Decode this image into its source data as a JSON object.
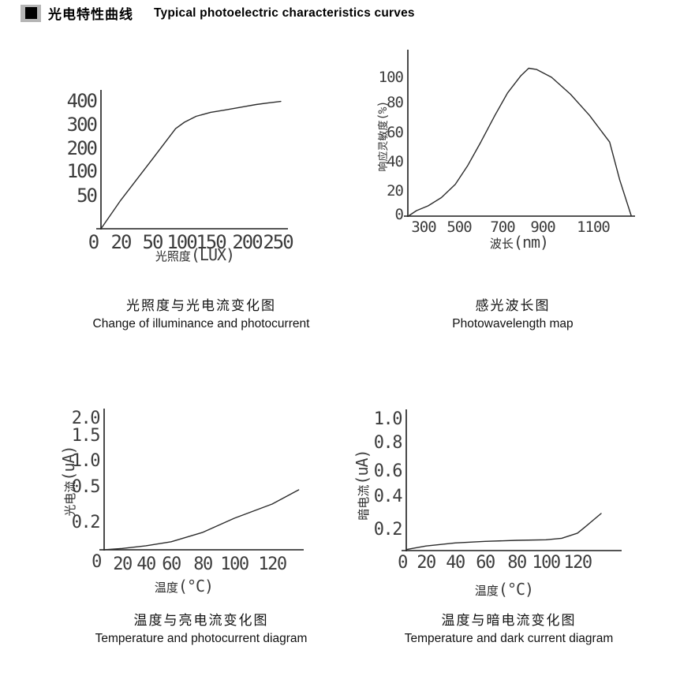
{
  "header": {
    "bullet_icon": "black-square",
    "title_zh": "光电特性曲线",
    "title_en": "Typical photoelectric characteristics curves"
  },
  "chart_data": [
    {
      "type": "line",
      "name": "illuminance-vs-photocurrent",
      "caption_zh": "光照度与光电流变化图",
      "caption_en": "Change of illuminance and photocurrent",
      "xlabel_zh": "光照度",
      "xlabel_unit": "(LUX)",
      "x_tick_labels": [
        "0",
        "20",
        "50",
        "100",
        "150",
        "200",
        "250"
      ],
      "y_tick_labels": [
        "400",
        "300",
        "200",
        "100",
        "50"
      ],
      "xlim": [
        0,
        270
      ],
      "ylim": [
        0,
        420
      ],
      "grid": false,
      "points": [
        [
          0,
          0
        ],
        [
          20,
          43
        ],
        [
          50,
          152
        ],
        [
          90,
          283
        ],
        [
          105,
          310
        ],
        [
          125,
          335
        ],
        [
          150,
          352
        ],
        [
          170,
          362
        ],
        [
          200,
          378
        ],
        [
          215,
          385
        ],
        [
          235,
          392
        ],
        [
          255,
          398
        ]
      ]
    },
    {
      "type": "line",
      "name": "spectral-response",
      "caption_zh": "感光波长图",
      "caption_en": "Photowavelength map",
      "xlabel_zh": "波长",
      "xlabel_unit": "(nm)",
      "ylabel_zh": "响应灵敏度",
      "ylabel_unit": "(%)",
      "x_tick_labels": [
        "300",
        "500",
        "700",
        "900",
        "1100"
      ],
      "y_tick_labels": [
        "100",
        "80",
        "60",
        "40",
        "20",
        "0"
      ],
      "xlim": [
        220,
        1250
      ],
      "ylim": [
        0,
        110
      ],
      "grid": false,
      "points": [
        [
          220,
          0
        ],
        [
          260,
          4
        ],
        [
          325,
          8
        ],
        [
          400,
          15
        ],
        [
          478,
          25
        ],
        [
          540,
          38
        ],
        [
          600,
          54
        ],
        [
          665,
          72
        ],
        [
          725,
          88
        ],
        [
          790,
          101
        ],
        [
          830,
          107
        ],
        [
          870,
          106
        ],
        [
          935,
          100
        ],
        [
          1010,
          87
        ],
        [
          1085,
          72
        ],
        [
          1165,
          54
        ],
        [
          1205,
          28
        ],
        [
          1250,
          0
        ]
      ]
    },
    {
      "type": "line",
      "name": "temperature-vs-photocurrent",
      "caption_zh": "温度与亮电流变化图",
      "caption_en": "Temperature and photocurrent diagram",
      "xlabel_zh": "温度",
      "xlabel_unit": "(°C)",
      "ylabel_zh": "光电流",
      "ylabel_unit": "(uA)",
      "x_tick_labels": [
        "0",
        "20",
        "40",
        "60",
        "80",
        "100",
        "120"
      ],
      "y_tick_labels": [
        "2.0",
        "1.5",
        "1.0",
        "0.5",
        "0.2"
      ],
      "xlim": [
        0,
        135
      ],
      "ylim": [
        0,
        2.0
      ],
      "grid": false,
      "points": [
        [
          0,
          0
        ],
        [
          20,
          0.01
        ],
        [
          40,
          0.03
        ],
        [
          60,
          0.06
        ],
        [
          80,
          0.13
        ],
        [
          100,
          0.24
        ],
        [
          110,
          0.3
        ],
        [
          120,
          0.36
        ],
        [
          127,
          0.42
        ],
        [
          134,
          0.48
        ]
      ]
    },
    {
      "type": "line",
      "name": "temperature-vs-dark-current",
      "caption_zh": "温度与暗电流变化图",
      "caption_en": "Temperature and dark current diagram",
      "xlabel_zh": "温度",
      "xlabel_unit": "(°C)",
      "ylabel_zh": "暗电流",
      "ylabel_unit": "(uA)",
      "x_tick_labels": [
        "0",
        "20",
        "40",
        "60",
        "80",
        "100",
        "120"
      ],
      "y_tick_labels": [
        "1.0",
        "0.8",
        "0.6",
        "0.4",
        "0.2"
      ],
      "xlim": [
        0,
        135
      ],
      "ylim": [
        0,
        1.0
      ],
      "grid": false,
      "points": [
        [
          0,
          0.01
        ],
        [
          20,
          0.045
        ],
        [
          40,
          0.075
        ],
        [
          60,
          0.09
        ],
        [
          80,
          0.1
        ],
        [
          100,
          0.105
        ],
        [
          110,
          0.12
        ],
        [
          120,
          0.17
        ],
        [
          125,
          0.22
        ],
        [
          130,
          0.26
        ],
        [
          135,
          0.3
        ]
      ]
    }
  ]
}
